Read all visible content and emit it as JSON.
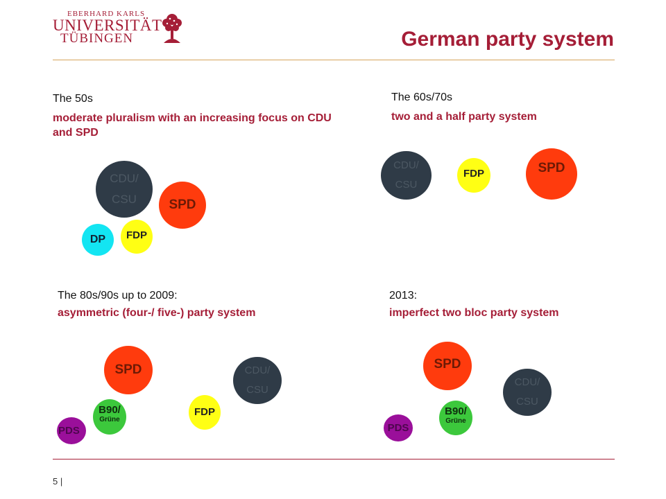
{
  "header": {
    "logo_line1": "EBERHARD KARLS",
    "logo_line2": "UNIVERSITÄT",
    "logo_line3": "TÜBINGEN",
    "title": "German party system"
  },
  "footer": {
    "page_number": "5 |"
  },
  "colors": {
    "accent": "#a51e37",
    "cdu": "#2f3b47",
    "spd": "#ff3b0d",
    "fdp": "#ffff14",
    "dp": "#13e5f2",
    "gruene": "#3cc83c",
    "pds": "#9a0f9a"
  },
  "icons": [
    "university-tree-logo-icon"
  ],
  "panels": [
    {
      "era": "The 50s",
      "description": "moderate pluralism with an increasing focus on CDU and SPD",
      "parties": [
        {
          "label": "CDU/\nCSU"
        },
        {
          "label": "SPD"
        },
        {
          "label": "DP"
        },
        {
          "label": "FDP"
        }
      ]
    },
    {
      "era": "The 60s/70s",
      "description": "two and a half party system",
      "parties": [
        {
          "label": "CDU/\nCSU"
        },
        {
          "label": "FDP"
        },
        {
          "label": "SPD"
        }
      ]
    },
    {
      "era": "The 80s/90s up to 2009:",
      "description": "asymmetric (four-/ five-) party system",
      "parties": [
        {
          "label": "SPD"
        },
        {
          "label": "CDU/\nCSU"
        },
        {
          "label": "B90/",
          "sub": "Grüne"
        },
        {
          "label": "FDP"
        },
        {
          "label": "PDS"
        }
      ]
    },
    {
      "era": "2013:",
      "description": "imperfect two bloc party system",
      "parties": [
        {
          "label": "SPD"
        },
        {
          "label": "CDU/\nCSU"
        },
        {
          "label": "B90/",
          "sub": "Grüne"
        },
        {
          "label": "PDS"
        }
      ]
    }
  ]
}
